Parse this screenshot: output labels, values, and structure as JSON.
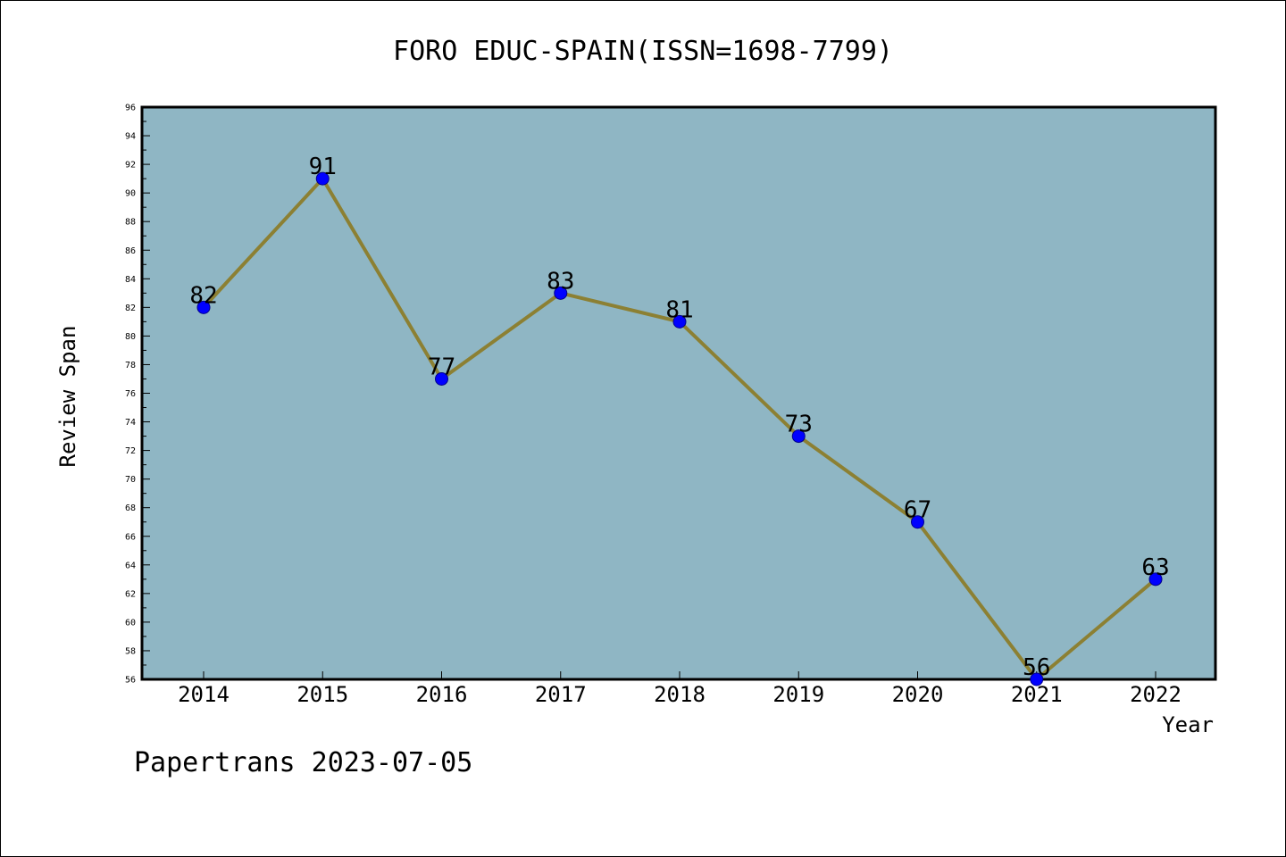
{
  "chart_data": {
    "type": "line",
    "title": "FORO EDUC-SPAIN(ISSN=1698-7799)",
    "xlabel": "Year",
    "ylabel": "Review Span",
    "x": [
      "2014",
      "2015",
      "2016",
      "2017",
      "2018",
      "2019",
      "2020",
      "2021",
      "2022"
    ],
    "series": [
      {
        "values": [
          82,
          91,
          77,
          83,
          81,
          73,
          67,
          56,
          63
        ]
      }
    ],
    "ylim": [
      56,
      96
    ],
    "ytick_step": 2,
    "grid": false,
    "data_labels": true,
    "colors": {
      "plot_background": "#8fb6c4",
      "line": "#8c8033",
      "marker": "#0000ff"
    }
  },
  "footer": "Papertrans 2023-07-05"
}
